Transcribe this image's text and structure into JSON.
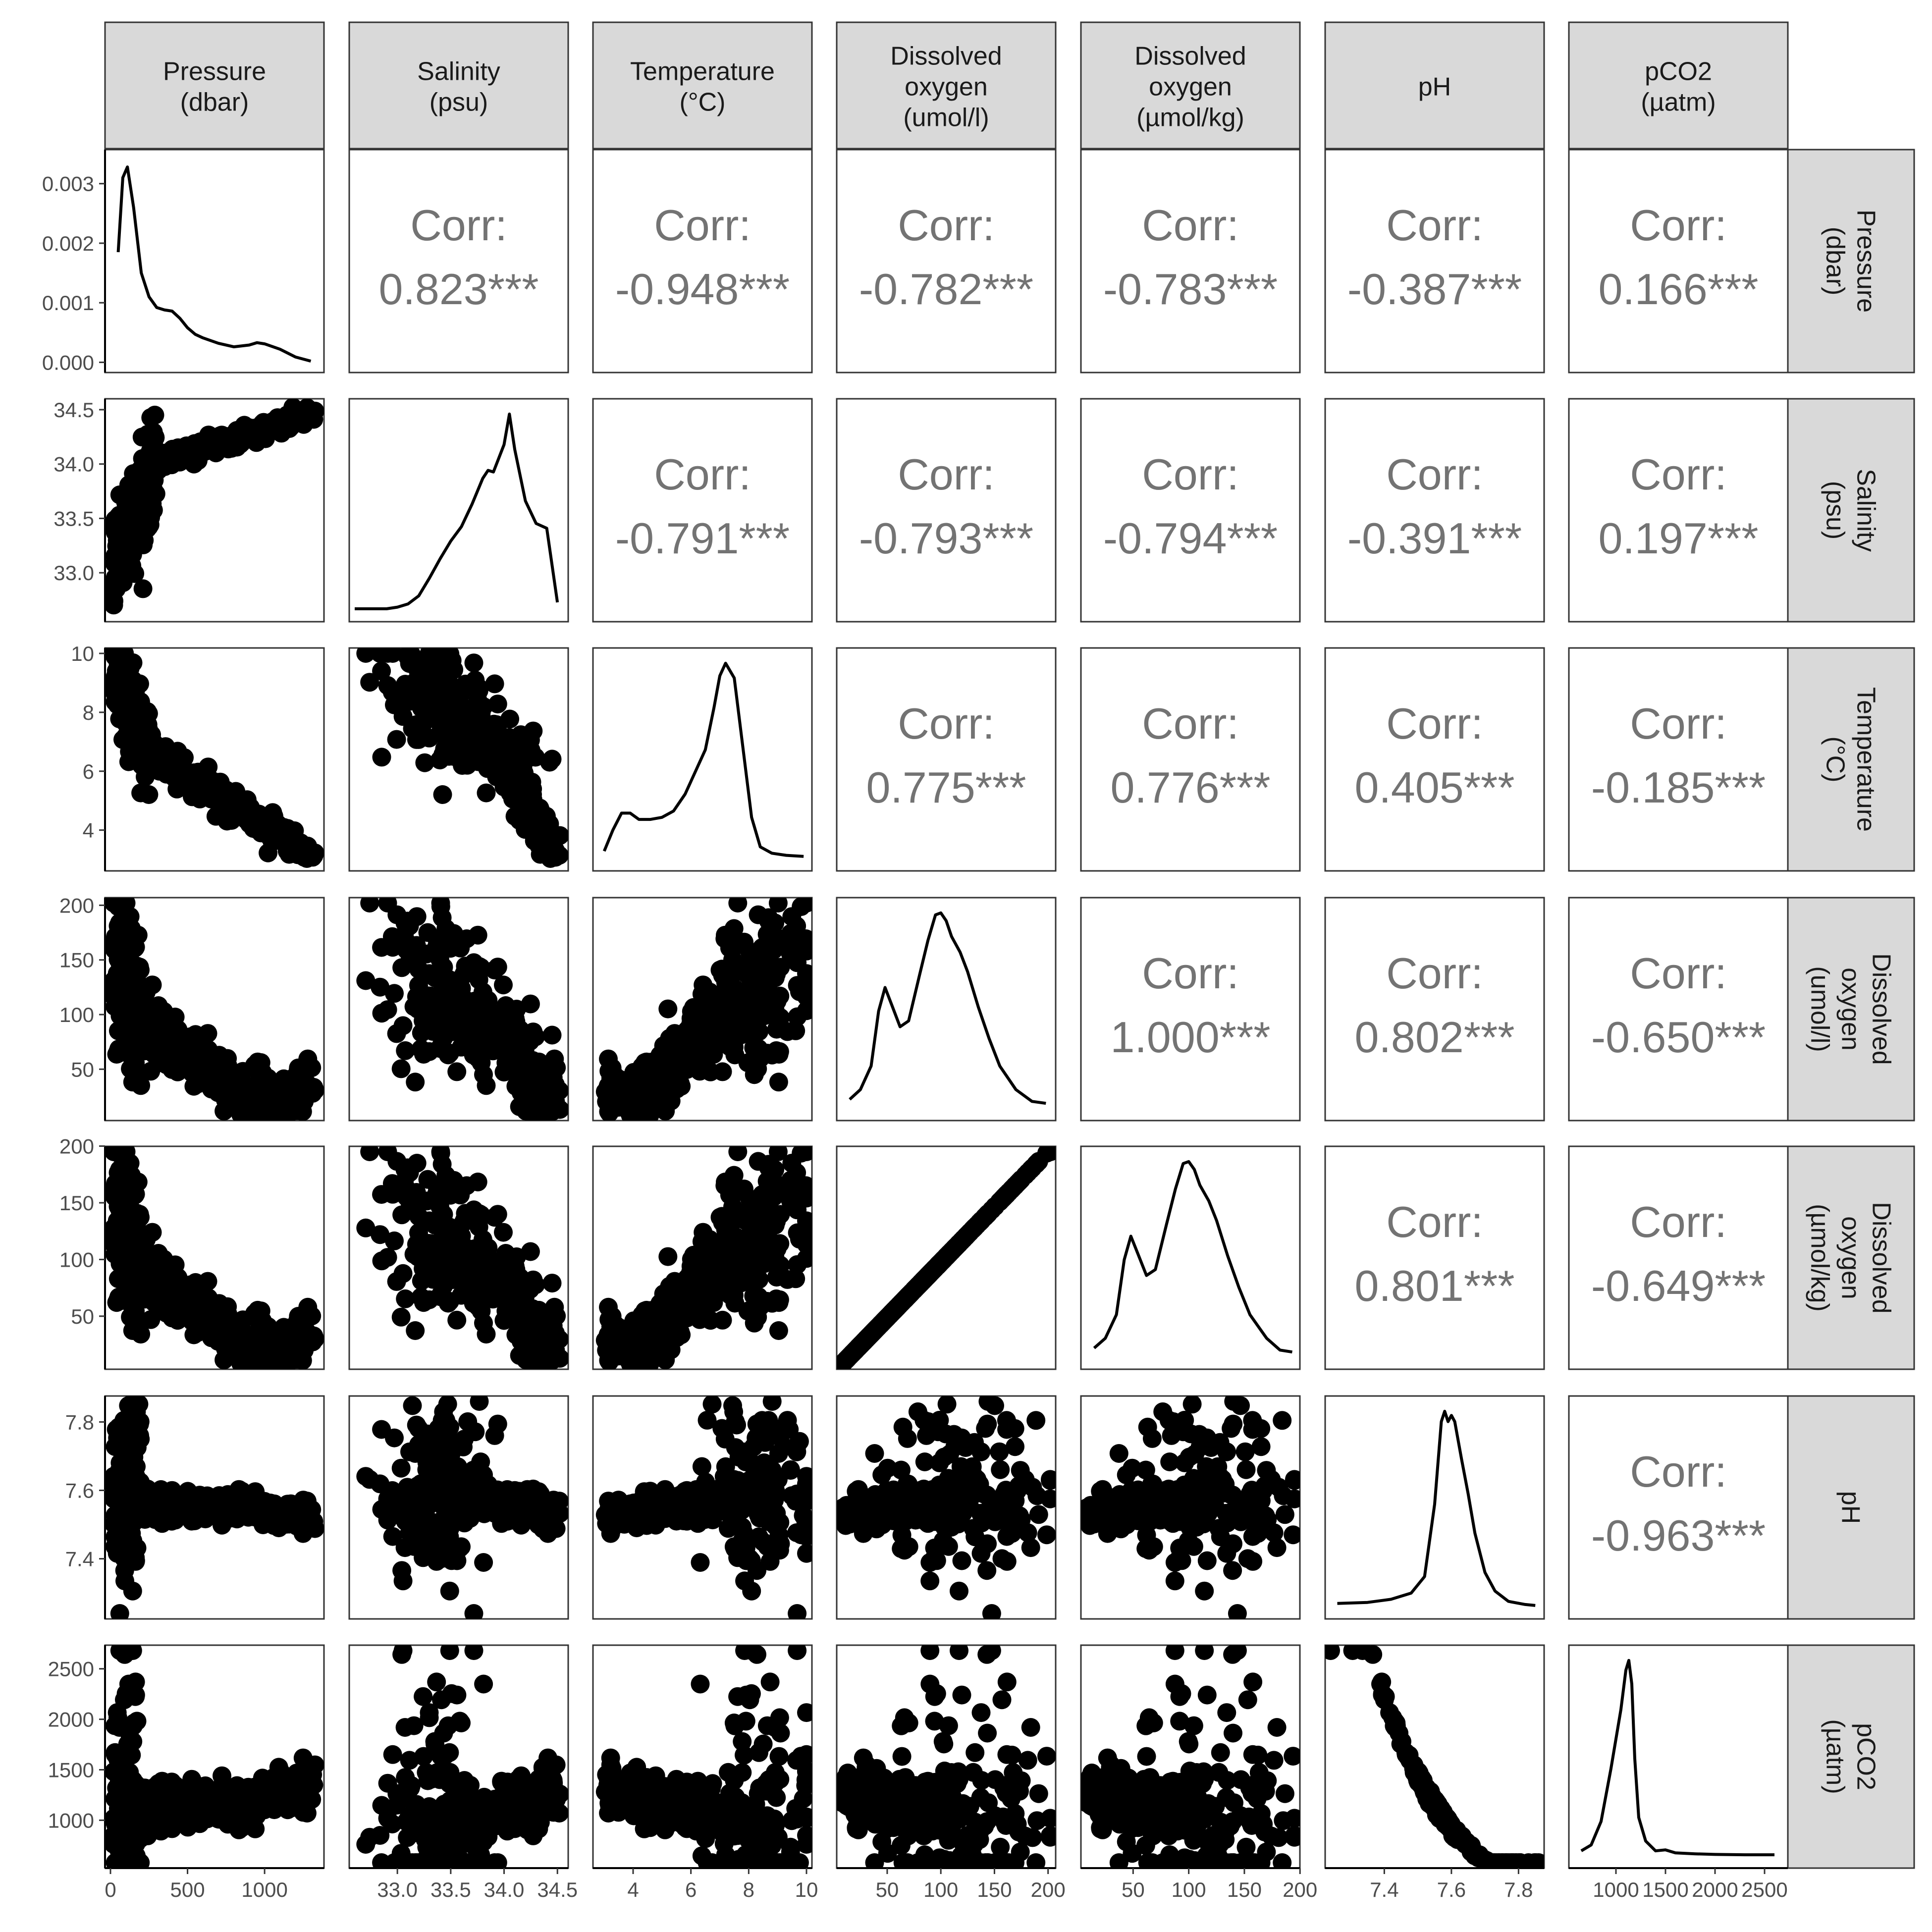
{
  "chart_data": {
    "type": "scatter",
    "variables": [
      {
        "label": "Pressure\n(dbar)",
        "range": [
          0,
          1350
        ],
        "ticks": [
          0,
          500,
          1000
        ]
      },
      {
        "label": "Salinity\n(psu)",
        "range": [
          32.6,
          34.55
        ],
        "ticks": [
          33.0,
          33.5,
          34.0,
          34.5
        ]
      },
      {
        "label": "Temperature\n(°C)",
        "range": [
          2.8,
          10.0
        ],
        "ticks": [
          4,
          6,
          8,
          10
        ]
      },
      {
        "label": "Dissolved\noxygen\n(umol/l)",
        "range": [
          8,
          202
        ],
        "ticks": [
          50,
          100,
          150,
          200
        ]
      },
      {
        "label": "Dissolved\noxygen\n(µmol/kg)",
        "range": [
          8,
          195
        ],
        "ticks": [
          50,
          100,
          150,
          200
        ]
      },
      {
        "label": "pH",
        "range": [
          7.24,
          7.86
        ],
        "ticks": [
          7.4,
          7.6,
          7.8
        ]
      },
      {
        "label": "pCO2\n(µatm)",
        "range": [
          580,
          2680
        ],
        "ticks": [
          1000,
          1500,
          2000,
          2500
        ]
      }
    ],
    "density_axis": {
      "ticks": [
        0.0,
        0.001,
        0.002,
        0.003
      ],
      "range": [
        -8e-05,
        0.00348
      ],
      "labels": [
        "0.000",
        "0.001",
        "0.002",
        "0.003"
      ]
    },
    "correlations": [
      [
        null,
        "0.823***",
        "-0.948***",
        "-0.782***",
        "-0.783***",
        "-0.387***",
        "0.166***"
      ],
      [
        null,
        null,
        "-0.791***",
        "-0.793***",
        "-0.794***",
        "-0.391***",
        "0.197***"
      ],
      [
        null,
        null,
        null,
        "0.775***",
        "0.776***",
        "0.405***",
        "-0.185***"
      ],
      [
        null,
        null,
        null,
        null,
        "1.000***",
        "0.802***",
        "-0.650***"
      ],
      [
        null,
        null,
        null,
        null,
        null,
        "0.801***",
        "-0.649***"
      ],
      [
        null,
        null,
        null,
        null,
        null,
        null,
        "-0.963***"
      ]
    ],
    "corr_label": "Corr:",
    "densities": [
      {
        "x": [
          50,
          80,
          110,
          150,
          200,
          250,
          300,
          350,
          400,
          450,
          500,
          550,
          600,
          700,
          800,
          900,
          950,
          1000,
          1100,
          1200,
          1300
        ],
        "y": [
          0.00185,
          0.0031,
          0.00328,
          0.0026,
          0.0015,
          0.0011,
          0.00092,
          0.00088,
          0.00086,
          0.00074,
          0.00058,
          0.00047,
          0.00041,
          0.00032,
          0.00026,
          0.00029,
          0.00033,
          0.00031,
          0.00022,
          9e-05,
          2e-05
        ]
      },
      {
        "x": [
          32.6,
          32.9,
          33.0,
          33.1,
          33.2,
          33.3,
          33.4,
          33.5,
          33.6,
          33.7,
          33.8,
          33.85,
          33.9,
          34.0,
          34.05,
          34.1,
          34.2,
          34.3,
          34.4,
          34.5
        ],
        "y": [
          0.01,
          0.01,
          0.02,
          0.04,
          0.09,
          0.2,
          0.32,
          0.43,
          0.52,
          0.66,
          0.82,
          0.87,
          0.86,
          1.03,
          1.22,
          1.0,
          0.68,
          0.54,
          0.51,
          0.05
        ]
      },
      {
        "x": [
          3.0,
          3.3,
          3.6,
          3.9,
          4.2,
          4.6,
          5.0,
          5.4,
          5.8,
          6.2,
          6.5,
          6.8,
          7.0,
          7.2,
          7.5,
          7.8,
          8.1,
          8.4,
          8.8,
          9.3,
          9.9
        ],
        "y": [
          0.04,
          0.14,
          0.22,
          0.22,
          0.19,
          0.19,
          0.2,
          0.23,
          0.31,
          0.43,
          0.52,
          0.72,
          0.87,
          0.93,
          0.86,
          0.53,
          0.2,
          0.06,
          0.03,
          0.02,
          0.015
        ]
      },
      {
        "x": [
          15,
          25,
          35,
          42,
          48,
          55,
          62,
          70,
          80,
          88,
          95,
          100,
          105,
          110,
          118,
          125,
          135,
          145,
          155,
          170,
          185,
          198
        ],
        "y": [
          0.05,
          0.1,
          0.22,
          0.5,
          0.62,
          0.52,
          0.42,
          0.45,
          0.68,
          0.86,
          0.99,
          1.0,
          0.96,
          0.88,
          0.8,
          0.7,
          0.52,
          0.36,
          0.22,
          0.1,
          0.04,
          0.03
        ]
      },
      {
        "x": [
          15,
          25,
          35,
          42,
          48,
          55,
          62,
          70,
          80,
          88,
          95,
          100,
          105,
          110,
          118,
          125,
          135,
          145,
          155,
          170,
          182,
          193
        ],
        "y": [
          0.05,
          0.1,
          0.22,
          0.5,
          0.62,
          0.52,
          0.42,
          0.45,
          0.68,
          0.86,
          0.99,
          1.0,
          0.96,
          0.88,
          0.8,
          0.7,
          0.52,
          0.36,
          0.22,
          0.1,
          0.04,
          0.03
        ]
      },
      {
        "x": [
          7.26,
          7.35,
          7.42,
          7.48,
          7.52,
          7.55,
          7.57,
          7.58,
          7.59,
          7.6,
          7.61,
          7.63,
          7.65,
          7.67,
          7.7,
          7.73,
          7.77,
          7.82,
          7.85
        ],
        "y": [
          0.02,
          0.025,
          0.04,
          0.07,
          0.15,
          0.5,
          0.9,
          0.95,
          0.9,
          0.93,
          0.9,
          0.72,
          0.55,
          0.36,
          0.17,
          0.08,
          0.03,
          0.015,
          0.01
        ]
      },
      {
        "x": [
          650,
          750,
          850,
          950,
          1050,
          1100,
          1130,
          1160,
          1190,
          1230,
          1300,
          1400,
          1500,
          1600,
          1800,
          2000,
          2300,
          2600
        ],
        "y": [
          0.03,
          0.06,
          0.18,
          0.45,
          0.75,
          0.95,
          1.0,
          0.88,
          0.5,
          0.2,
          0.08,
          0.03,
          0.035,
          0.02,
          0.015,
          0.012,
          0.01,
          0.01
        ]
      }
    ]
  }
}
